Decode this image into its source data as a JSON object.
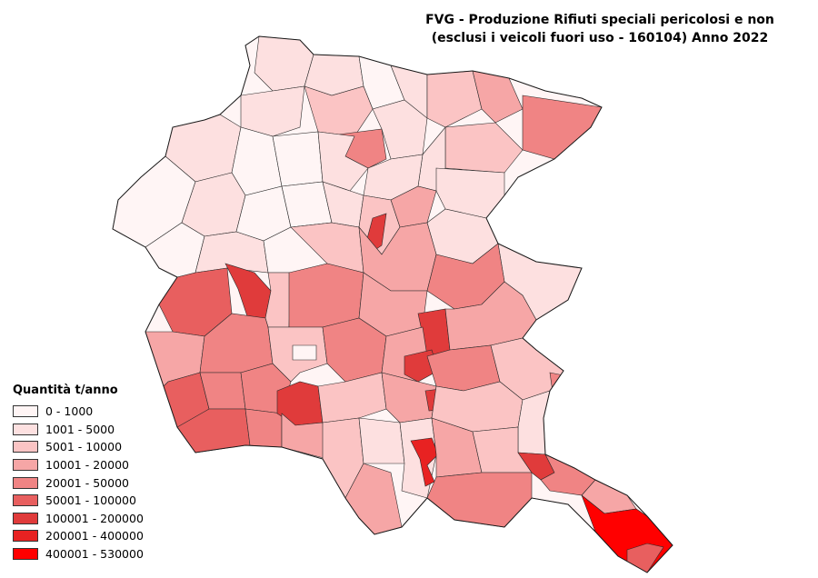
{
  "title": {
    "line1": "FVG - Produzione Rifiuti speciali pericolosi e non",
    "line2": "(esclusi i veicoli fuori uso - 160104) Anno 2022"
  },
  "legend": {
    "title": "Quantità t/anno",
    "classes": [
      {
        "label": "0 - 1000",
        "color": "#fff5f5"
      },
      {
        "label": "1001 - 5000",
        "color": "#fde0e0"
      },
      {
        "label": "5001 - 10000",
        "color": "#fbc4c4"
      },
      {
        "label": "10001 - 20000",
        "color": "#f6a6a6"
      },
      {
        "label": "20001 - 50000",
        "color": "#f08484"
      },
      {
        "label": "50001 - 100000",
        "color": "#e85f5f"
      },
      {
        "label": "100001 - 200000",
        "color": "#e03b3b"
      },
      {
        "label": "200001 - 400000",
        "color": "#e82222"
      },
      {
        "label": "400001 - 530000",
        "color": "#ff0000"
      }
    ]
  }
}
